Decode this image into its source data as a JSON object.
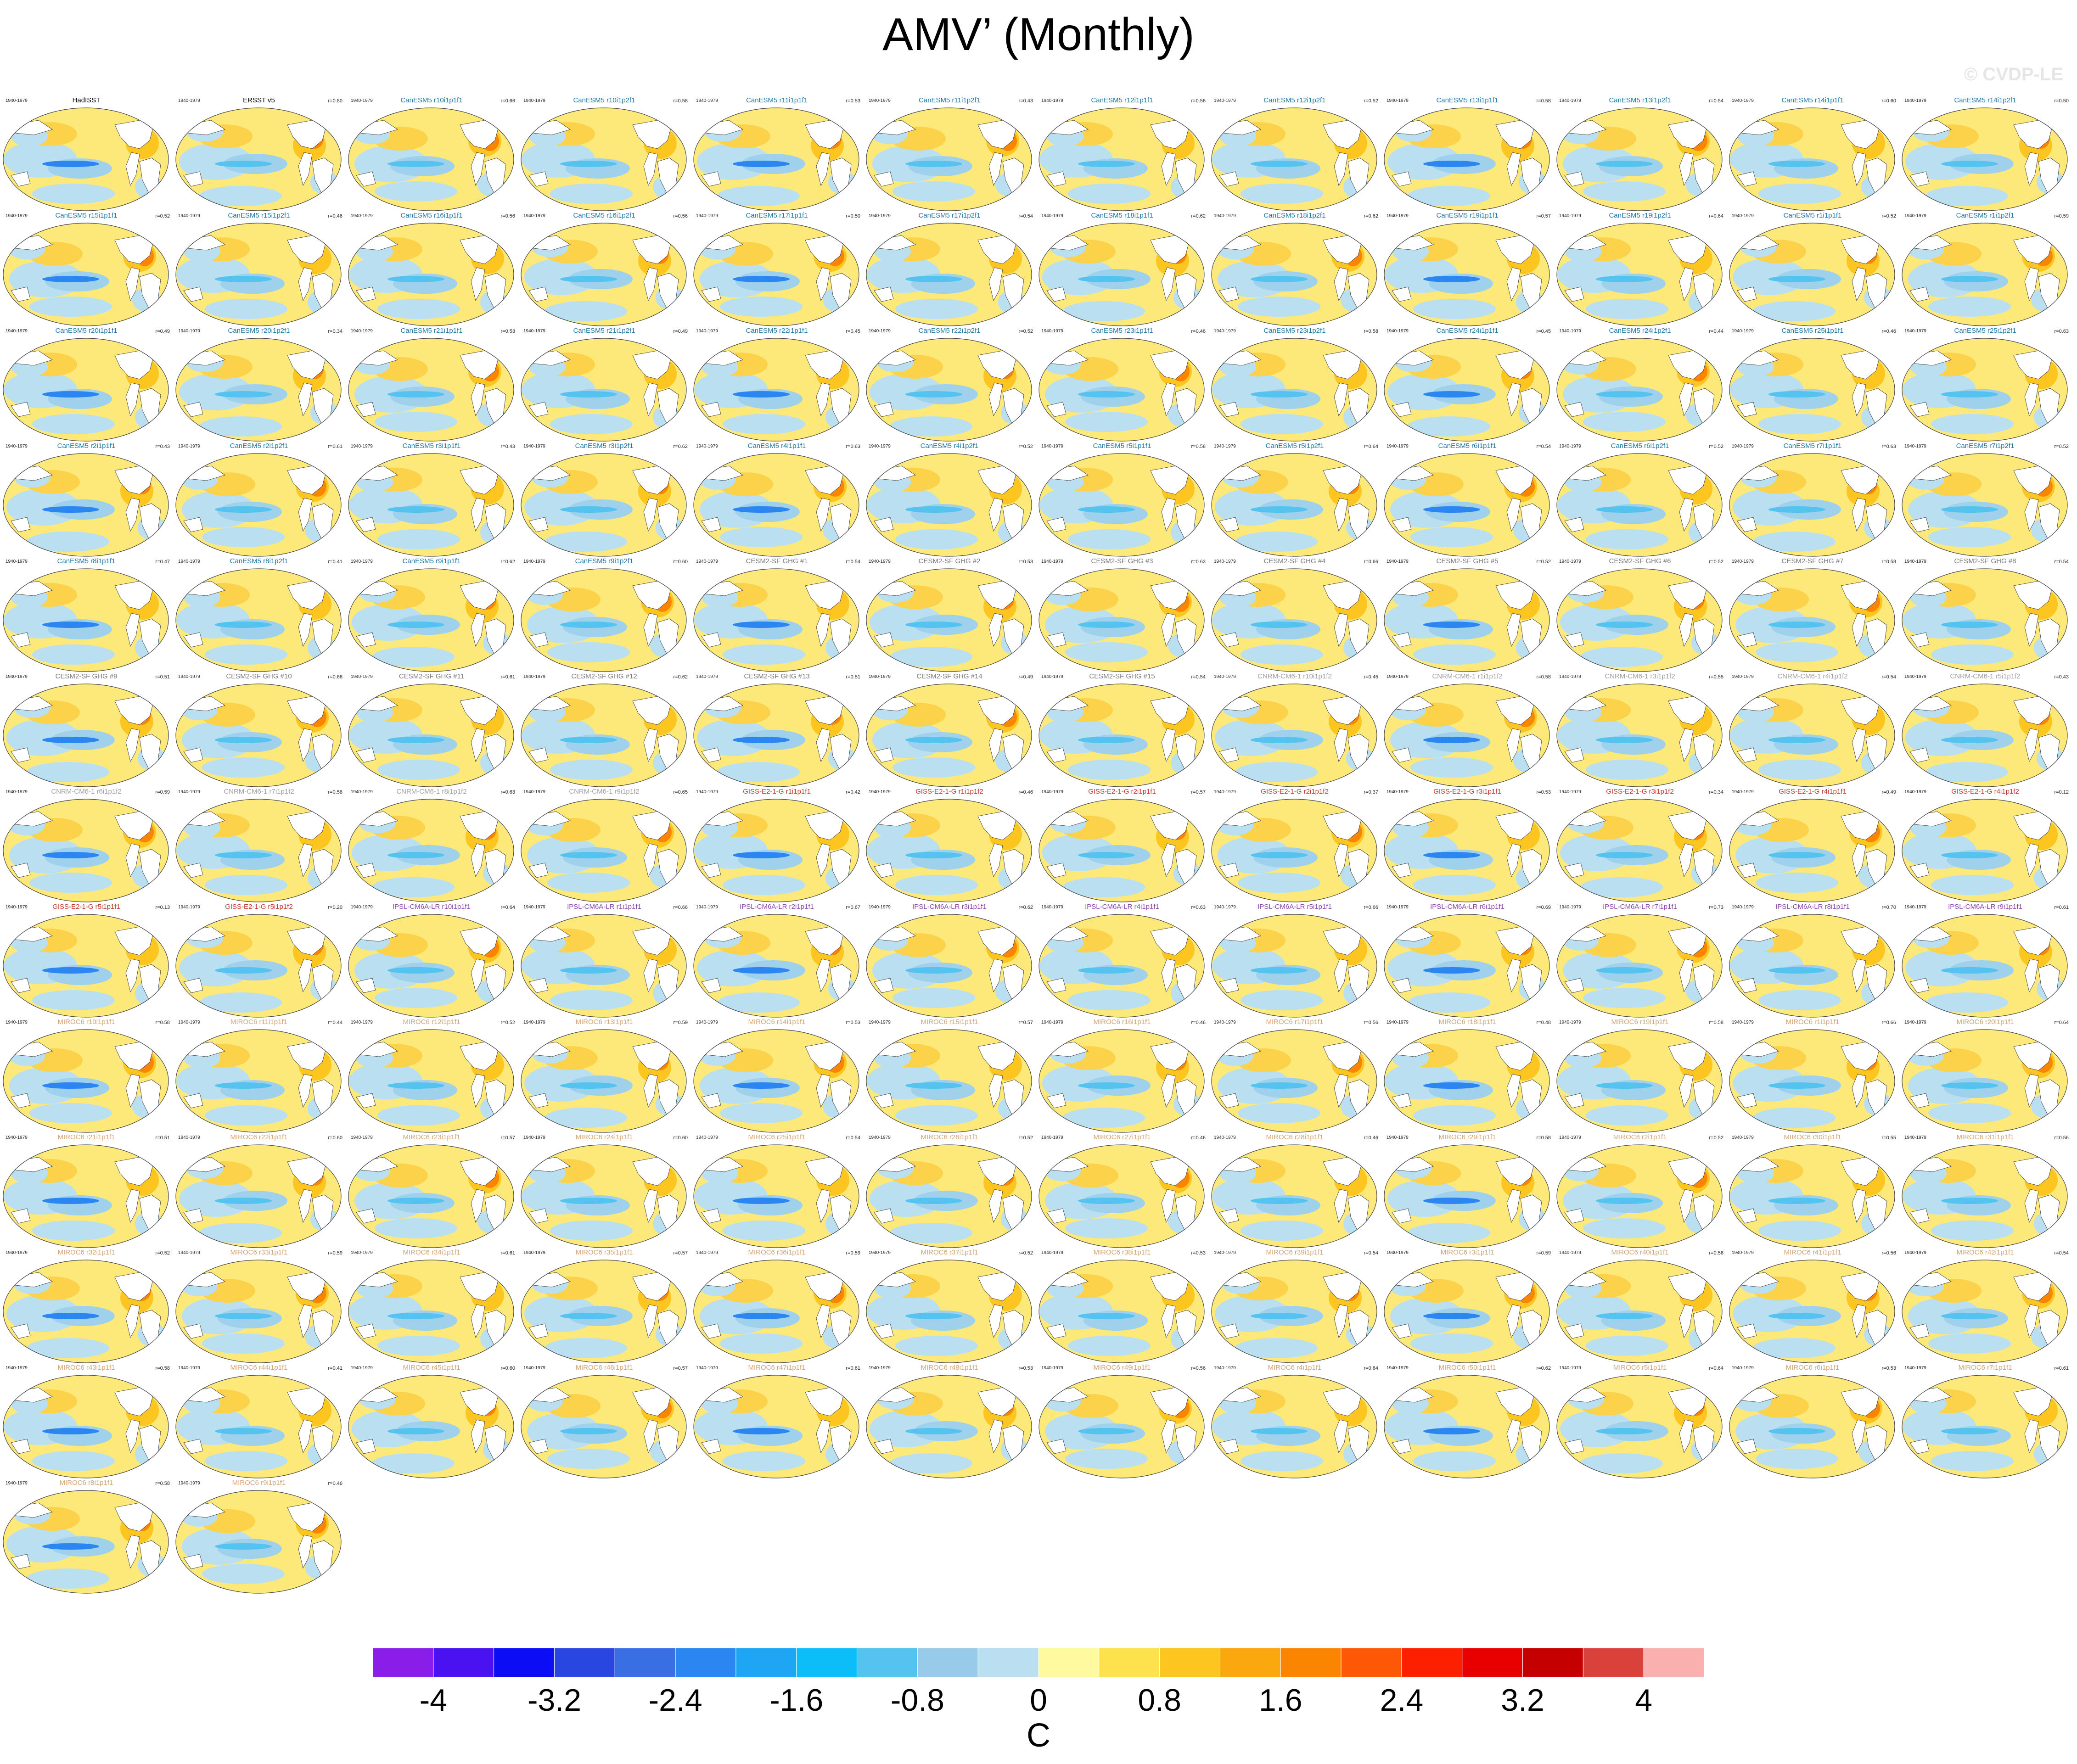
{
  "title": "AMV’ (Monthly)",
  "watermark": "© CVDP-LE",
  "period_label": "1940-1979",
  "colorbar": {
    "colors": [
      "#8a1ee8",
      "#4a12f0",
      "#0d0df5",
      "#2a46e0",
      "#3a6fe4",
      "#2b86f2",
      "#1ea6f5",
      "#0bbef7",
      "#55c3ef",
      "#97cbe9",
      "#b9dff1",
      "#fffaa0",
      "#fde24e",
      "#fcc51f",
      "#fba80e",
      "#fb8500",
      "#fc5806",
      "#fc1f00",
      "#e80000",
      "#c40000",
      "#d9413a",
      "#fbb0b0"
    ],
    "tick_labels": [
      "-4",
      "-3.2",
      "-2.4",
      "-1.6",
      "-0.8",
      "0",
      "0.8",
      "1.6",
      "2.4",
      "3.2",
      "4"
    ],
    "units": "C"
  },
  "panels": [
    {
      "name": "HadISST",
      "r": "",
      "color": "#000000"
    },
    {
      "name": "ERSST v5",
      "r": "r=0.80",
      "color": "#000000"
    },
    {
      "name": "CanESM5 r10i1p1f1",
      "r": "r=0.66",
      "color": "#1f77a4"
    },
    {
      "name": "CanESM5 r10i1p2f1",
      "r": "r=0.58",
      "color": "#1f77a4"
    },
    {
      "name": "CanESM5 r11i1p1f1",
      "r": "r=0.53",
      "color": "#1f77a4"
    },
    {
      "name": "CanESM5 r11i1p2f1",
      "r": "r=0.43",
      "color": "#1f77a4"
    },
    {
      "name": "CanESM5 r12i1p1f1",
      "r": "r=0.56",
      "color": "#1f77a4"
    },
    {
      "name": "CanESM5 r12i1p2f1",
      "r": "r=0.52",
      "color": "#1f77a4"
    },
    {
      "name": "CanESM5 r13i1p1f1",
      "r": "r=0.58",
      "color": "#1f77a4"
    },
    {
      "name": "CanESM5 r13i1p2f1",
      "r": "r=0.54",
      "color": "#1f77a4"
    },
    {
      "name": "CanESM5 r14i1p1f1",
      "r": "r=0.60",
      "color": "#1f77a4"
    },
    {
      "name": "CanESM5 r14i1p2f1",
      "r": "r=0.50",
      "color": "#1f77a4"
    },
    {
      "name": "CanESM5 r15i1p1f1",
      "r": "r=0.52",
      "color": "#1f77a4"
    },
    {
      "name": "CanESM5 r15i1p2f1",
      "r": "r=0.46",
      "color": "#1f77a4"
    },
    {
      "name": "CanESM5 r16i1p1f1",
      "r": "r=0.56",
      "color": "#1f77a4"
    },
    {
      "name": "CanESM5 r16i1p2f1",
      "r": "r=0.56",
      "color": "#1f77a4"
    },
    {
      "name": "CanESM5 r17i1p1f1",
      "r": "r=0.50",
      "color": "#1f77a4"
    },
    {
      "name": "CanESM5 r17i1p2f1",
      "r": "r=0.54",
      "color": "#1f77a4"
    },
    {
      "name": "CanESM5 r18i1p1f1",
      "r": "r=0.62",
      "color": "#1f77a4"
    },
    {
      "name": "CanESM5 r18i1p2f1",
      "r": "r=0.62",
      "color": "#1f77a4"
    },
    {
      "name": "CanESM5 r19i1p1f1",
      "r": "r=0.57",
      "color": "#1f77a4"
    },
    {
      "name": "CanESM5 r19i1p2f1",
      "r": "r=0.64",
      "color": "#1f77a4"
    },
    {
      "name": "CanESM5 r1i1p1f1",
      "r": "r=0.52",
      "color": "#1f77a4"
    },
    {
      "name": "CanESM5 r1i1p2f1",
      "r": "r=0.59",
      "color": "#1f77a4"
    },
    {
      "name": "CanESM5 r20i1p1f1",
      "r": "r=0.49",
      "color": "#1f77a4"
    },
    {
      "name": "CanESM5 r20i1p2f1",
      "r": "r=0.34",
      "color": "#1f77a4"
    },
    {
      "name": "CanESM5 r21i1p1f1",
      "r": "r=0.53",
      "color": "#1f77a4"
    },
    {
      "name": "CanESM5 r21i1p2f1",
      "r": "r=0.49",
      "color": "#1f77a4"
    },
    {
      "name": "CanESM5 r22i1p1f1",
      "r": "r=0.45",
      "color": "#1f77a4"
    },
    {
      "name": "CanESM5 r22i1p2f1",
      "r": "r=0.52",
      "color": "#1f77a4"
    },
    {
      "name": "CanESM5 r23i1p1f1",
      "r": "r=0.46",
      "color": "#1f77a4"
    },
    {
      "name": "CanESM5 r23i1p2f1",
      "r": "r=0.58",
      "color": "#1f77a4"
    },
    {
      "name": "CanESM5 r24i1p1f1",
      "r": "r=0.45",
      "color": "#1f77a4"
    },
    {
      "name": "CanESM5 r24i1p2f1",
      "r": "r=0.44",
      "color": "#1f77a4"
    },
    {
      "name": "CanESM5 r25i1p1f1",
      "r": "r=0.46",
      "color": "#1f77a4"
    },
    {
      "name": "CanESM5 r25i1p2f1",
      "r": "r=0.63",
      "color": "#1f77a4"
    },
    {
      "name": "CanESM5 r2i1p1f1",
      "r": "r=0.43",
      "color": "#1f77a4"
    },
    {
      "name": "CanESM5 r2i1p2f1",
      "r": "r=0.61",
      "color": "#1f77a4"
    },
    {
      "name": "CanESM5 r3i1p1f1",
      "r": "r=0.43",
      "color": "#1f77a4"
    },
    {
      "name": "CanESM5 r3i1p2f1",
      "r": "r=0.62",
      "color": "#1f77a4"
    },
    {
      "name": "CanESM5 r4i1p1f1",
      "r": "r=0.63",
      "color": "#1f77a4"
    },
    {
      "name": "CanESM5 r4i1p2f1",
      "r": "r=0.52",
      "color": "#1f77a4"
    },
    {
      "name": "CanESM5 r5i1p1f1",
      "r": "r=0.58",
      "color": "#1f77a4"
    },
    {
      "name": "CanESM5 r5i1p2f1",
      "r": "r=0.64",
      "color": "#1f77a4"
    },
    {
      "name": "CanESM5 r6i1p1f1",
      "r": "r=0.54",
      "color": "#1f77a4"
    },
    {
      "name": "CanESM5 r6i1p2f1",
      "r": "r=0.52",
      "color": "#1f77a4"
    },
    {
      "name": "CanESM5 r7i1p1f1",
      "r": "r=0.63",
      "color": "#1f77a4"
    },
    {
      "name": "CanESM5 r7i1p2f1",
      "r": "r=0.52",
      "color": "#1f77a4"
    },
    {
      "name": "CanESM5 r8i1p1f1",
      "r": "r=0.47",
      "color": "#1f77a4"
    },
    {
      "name": "CanESM5 r8i1p2f1",
      "r": "r=0.41",
      "color": "#1f77a4"
    },
    {
      "name": "CanESM5 r9i1p1f1",
      "r": "r=0.62",
      "color": "#1f77a4"
    },
    {
      "name": "CanESM5 r9i1p2f1",
      "r": "r=0.60",
      "color": "#1f77a4"
    },
    {
      "name": "CESM2-SF GHG #1",
      "r": "r=0.54",
      "color": "#7a7a7a"
    },
    {
      "name": "CESM2-SF GHG #2",
      "r": "r=0.53",
      "color": "#7a7a7a"
    },
    {
      "name": "CESM2-SF GHG #3",
      "r": "r=0.63",
      "color": "#7a7a7a"
    },
    {
      "name": "CESM2-SF GHG #4",
      "r": "r=0.66",
      "color": "#7a7a7a"
    },
    {
      "name": "CESM2-SF GHG #5",
      "r": "r=0.52",
      "color": "#7a7a7a"
    },
    {
      "name": "CESM2-SF GHG #6",
      "r": "r=0.52",
      "color": "#7a7a7a"
    },
    {
      "name": "CESM2-SF GHG #7",
      "r": "r=0.58",
      "color": "#7a7a7a"
    },
    {
      "name": "CESM2-SF GHG #8",
      "r": "r=0.54",
      "color": "#7a7a7a"
    },
    {
      "name": "CESM2-SF GHG #9",
      "r": "r=0.51",
      "color": "#7a7a7a"
    },
    {
      "name": "CESM2-SF GHG #10",
      "r": "r=0.66",
      "color": "#7a7a7a"
    },
    {
      "name": "CESM2-SF GHG #11",
      "r": "r=0.61",
      "color": "#7a7a7a"
    },
    {
      "name": "CESM2-SF GHG #12",
      "r": "r=0.62",
      "color": "#7a7a7a"
    },
    {
      "name": "CESM2-SF GHG #13",
      "r": "r=0.51",
      "color": "#7a7a7a"
    },
    {
      "name": "CESM2-SF GHG #14",
      "r": "r=0.49",
      "color": "#7a7a7a"
    },
    {
      "name": "CESM2-SF GHG #15",
      "r": "r=0.54",
      "color": "#7a7a7a"
    },
    {
      "name": "CNRM-CM6-1 r10i1p1f2",
      "r": "r=0.45",
      "color": "#a0a0a0"
    },
    {
      "name": "CNRM-CM6-1 r1i1p1f2",
      "r": "r=0.58",
      "color": "#a0a0a0"
    },
    {
      "name": "CNRM-CM6-1 r3i1p1f2",
      "r": "r=0.55",
      "color": "#a0a0a0"
    },
    {
      "name": "CNRM-CM6-1 r4i1p1f2",
      "r": "r=0.54",
      "color": "#a0a0a0"
    },
    {
      "name": "CNRM-CM6-1 r5i1p1f2",
      "r": "r=0.43",
      "color": "#a0a0a0"
    },
    {
      "name": "CNRM-CM6-1 r6i1p1f2",
      "r": "r=0.59",
      "color": "#a0a0a0"
    },
    {
      "name": "CNRM-CM6-1 r7i1p1f2",
      "r": "r=0.58",
      "color": "#a0a0a0"
    },
    {
      "name": "CNRM-CM6-1 r8i1p1f2",
      "r": "r=0.63",
      "color": "#a0a0a0"
    },
    {
      "name": "CNRM-CM6-1 r9i1p1f2",
      "r": "r=0.65",
      "color": "#a0a0a0"
    },
    {
      "name": "GISS-E2-1-G r1i1p1f1",
      "r": "r=0.42",
      "color": "#c0392b"
    },
    {
      "name": "GISS-E2-1-G r1i1p1f2",
      "r": "r=0.46",
      "color": "#c0392b"
    },
    {
      "name": "GISS-E2-1-G r2i1p1f1",
      "r": "r=0.57",
      "color": "#c0392b"
    },
    {
      "name": "GISS-E2-1-G r2i1p1f2",
      "r": "r=0.37",
      "color": "#c0392b"
    },
    {
      "name": "GISS-E2-1-G r3i1p1f1",
      "r": "r=0.53",
      "color": "#c0392b"
    },
    {
      "name": "GISS-E2-1-G r3i1p1f2",
      "r": "r=0.34",
      "color": "#c0392b"
    },
    {
      "name": "GISS-E2-1-G r4i1p1f1",
      "r": "r=0.49",
      "color": "#c0392b"
    },
    {
      "name": "GISS-E2-1-G r4i1p1f2",
      "r": "r=0.12",
      "color": "#c0392b"
    },
    {
      "name": "GISS-E2-1-G r5i1p1f1",
      "r": "r=0.13",
      "color": "#c0392b"
    },
    {
      "name": "GISS-E2-1-G r5i1p1f2",
      "r": "r=0.20",
      "color": "#c0392b"
    },
    {
      "name": "IPSL-CM6A-LR r10i1p1f1",
      "r": "r=0.64",
      "color": "#8e44ad"
    },
    {
      "name": "IPSL-CM6A-LR r1i1p1f1",
      "r": "r=0.66",
      "color": "#8e44ad"
    },
    {
      "name": "IPSL-CM6A-LR r2i1p1f1",
      "r": "r=0.67",
      "color": "#8e44ad"
    },
    {
      "name": "IPSL-CM6A-LR r3i1p1f1",
      "r": "r=0.62",
      "color": "#8e44ad"
    },
    {
      "name": "IPSL-CM6A-LR r4i1p1f1",
      "r": "r=0.63",
      "color": "#8e44ad"
    },
    {
      "name": "IPSL-CM6A-LR r5i1p1f1",
      "r": "r=0.66",
      "color": "#8e44ad"
    },
    {
      "name": "IPSL-CM6A-LR r6i1p1f1",
      "r": "r=0.69",
      "color": "#8e44ad"
    },
    {
      "name": "IPSL-CM6A-LR r7i1p1f1",
      "r": "r=0.73",
      "color": "#8e44ad"
    },
    {
      "name": "IPSL-CM6A-LR r8i1p1f1",
      "r": "r=0.70",
      "color": "#8e44ad"
    },
    {
      "name": "IPSL-CM6A-LR r9i1p1f1",
      "r": "r=0.61",
      "color": "#8e44ad"
    },
    {
      "name": "MIROC6 r10i1p1f1",
      "r": "r=0.58",
      "color": "#d4a373"
    },
    {
      "name": "MIROC6 r11i1p1f1",
      "r": "r=0.44",
      "color": "#d4a373"
    },
    {
      "name": "MIROC6 r12i1p1f1",
      "r": "r=0.52",
      "color": "#d4a373"
    },
    {
      "name": "MIROC6 r13i1p1f1",
      "r": "r=0.59",
      "color": "#d4a373"
    },
    {
      "name": "MIROC6 r14i1p1f1",
      "r": "r=0.53",
      "color": "#d4a373"
    },
    {
      "name": "MIROC6 r15i1p1f1",
      "r": "r=0.57",
      "color": "#d4a373"
    },
    {
      "name": "MIROC6 r16i1p1f1",
      "r": "r=0.46",
      "color": "#d4a373"
    },
    {
      "name": "MIROC6 r17i1p1f1",
      "r": "r=0.56",
      "color": "#d4a373"
    },
    {
      "name": "MIROC6 r18i1p1f1",
      "r": "r=0.48",
      "color": "#d4a373"
    },
    {
      "name": "MIROC6 r19i1p1f1",
      "r": "r=0.58",
      "color": "#d4a373"
    },
    {
      "name": "MIROC6 r1i1p1f1",
      "r": "r=0.66",
      "color": "#d4a373"
    },
    {
      "name": "MIROC6 r20i1p1f1",
      "r": "r=0.64",
      "color": "#d4a373"
    },
    {
      "name": "MIROC6 r21i1p1f1",
      "r": "r=0.51",
      "color": "#d4a373"
    },
    {
      "name": "MIROC6 r22i1p1f1",
      "r": "r=0.60",
      "color": "#d4a373"
    },
    {
      "name": "MIROC6 r23i1p1f1",
      "r": "r=0.57",
      "color": "#d4a373"
    },
    {
      "name": "MIROC6 r24i1p1f1",
      "r": "r=0.60",
      "color": "#d4a373"
    },
    {
      "name": "MIROC6 r25i1p1f1",
      "r": "r=0.54",
      "color": "#d4a373"
    },
    {
      "name": "MIROC6 r26i1p1f1",
      "r": "r=0.52",
      "color": "#d4a373"
    },
    {
      "name": "MIROC6 r27i1p1f1",
      "r": "r=0.46",
      "color": "#d4a373"
    },
    {
      "name": "MIROC6 r28i1p1f1",
      "r": "r=0.46",
      "color": "#d4a373"
    },
    {
      "name": "MIROC6 r29i1p1f1",
      "r": "r=0.58",
      "color": "#d4a373"
    },
    {
      "name": "MIROC6 r2i1p1f1",
      "r": "r=0.52",
      "color": "#d4a373"
    },
    {
      "name": "MIROC6 r30i1p1f1",
      "r": "r=0.55",
      "color": "#d4a373"
    },
    {
      "name": "MIROC6 r31i1p1f1",
      "r": "r=0.56",
      "color": "#d4a373"
    },
    {
      "name": "MIROC6 r32i1p1f1",
      "r": "r=0.52",
      "color": "#d4a373"
    },
    {
      "name": "MIROC6 r33i1p1f1",
      "r": "r=0.59",
      "color": "#d4a373"
    },
    {
      "name": "MIROC6 r34i1p1f1",
      "r": "r=0.61",
      "color": "#d4a373"
    },
    {
      "name": "MIROC6 r35i1p1f1",
      "r": "r=0.57",
      "color": "#d4a373"
    },
    {
      "name": "MIROC6 r36i1p1f1",
      "r": "r=0.59",
      "color": "#d4a373"
    },
    {
      "name": "MIROC6 r37i1p1f1",
      "r": "r=0.52",
      "color": "#d4a373"
    },
    {
      "name": "MIROC6 r38i1p1f1",
      "r": "r=0.53",
      "color": "#d4a373"
    },
    {
      "name": "MIROC6 r39i1p1f1",
      "r": "r=0.54",
      "color": "#d4a373"
    },
    {
      "name": "MIROC6 r3i1p1f1",
      "r": "r=0.59",
      "color": "#d4a373"
    },
    {
      "name": "MIROC6 r40i1p1f1",
      "r": "r=0.56",
      "color": "#d4a373"
    },
    {
      "name": "MIROC6 r41i1p1f1",
      "r": "r=0.56",
      "color": "#d4a373"
    },
    {
      "name": "MIROC6 r42i1p1f1",
      "r": "r=0.54",
      "color": "#d4a373"
    },
    {
      "name": "MIROC6 r43i1p1f1",
      "r": "r=0.58",
      "color": "#d4a373"
    },
    {
      "name": "MIROC6 r44i1p1f1",
      "r": "r=0.41",
      "color": "#d4a373"
    },
    {
      "name": "MIROC6 r45i1p1f1",
      "r": "r=0.60",
      "color": "#d4a373"
    },
    {
      "name": "MIROC6 r46i1p1f1",
      "r": "r=0.57",
      "color": "#d4a373"
    },
    {
      "name": "MIROC6 r47i1p1f1",
      "r": "r=0.61",
      "color": "#d4a373"
    },
    {
      "name": "MIROC6 r48i1p1f1",
      "r": "r=0.53",
      "color": "#d4a373"
    },
    {
      "name": "MIROC6 r49i1p1f1",
      "r": "r=0.56",
      "color": "#d4a373"
    },
    {
      "name": "MIROC6 r4i1p1f1",
      "r": "r=0.64",
      "color": "#d4a373"
    },
    {
      "name": "MIROC6 r50i1p1f1",
      "r": "r=0.62",
      "color": "#d4a373"
    },
    {
      "name": "MIROC6 r5i1p1f1",
      "r": "r=0.64",
      "color": "#d4a373"
    },
    {
      "name": "MIROC6 r6i1p1f1",
      "r": "r=0.53",
      "color": "#d4a373"
    },
    {
      "name": "MIROC6 r7i1p1f1",
      "r": "r=0.61",
      "color": "#d4a373"
    },
    {
      "name": "MIROC6 r8i1p1f1",
      "r": "r=0.58",
      "color": "#d4a373"
    },
    {
      "name": "MIROC6 r9i1p1f1",
      "r": "r=0.46",
      "color": "#d4a373"
    }
  ]
}
